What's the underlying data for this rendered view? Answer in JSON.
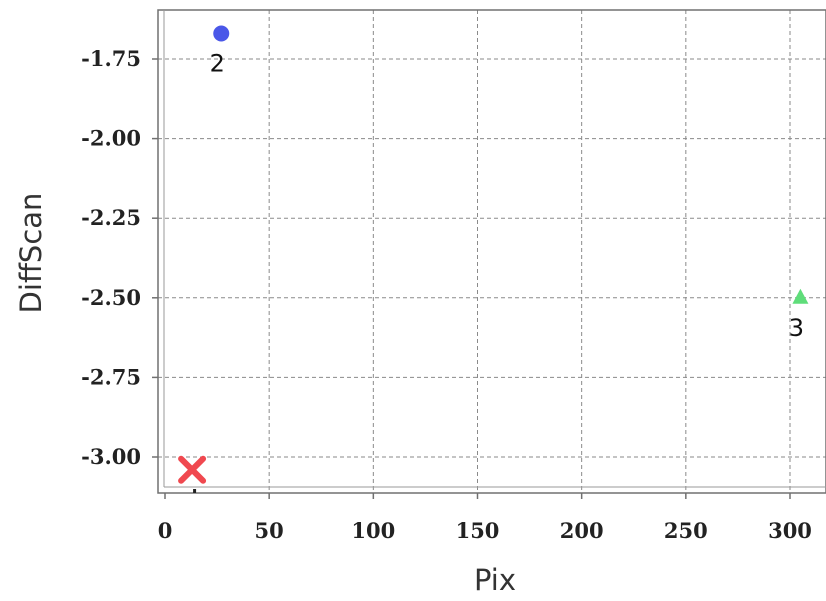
{
  "chart_data": {
    "type": "scatter",
    "xlabel": "Pix",
    "ylabel": "DiffScan",
    "xlim": [
      0,
      320
    ],
    "ylim": [
      -3.11,
      -1.62
    ],
    "x_ticks": [
      0,
      50,
      100,
      150,
      200,
      250,
      300
    ],
    "x_tick_labels": [
      "0",
      "50",
      "100",
      "150",
      "200",
      "250",
      "300"
    ],
    "y_ticks": [
      -1.75,
      -2.0,
      -2.25,
      -2.5,
      -2.75,
      -3.0
    ],
    "y_tick_labels": [
      "-1.75",
      "-2.00",
      "-2.25",
      "-2.50",
      "-2.75",
      "-3.00"
    ],
    "grid": true,
    "points": [
      {
        "label": "",
        "x": 13,
        "y": -3.04,
        "marker": "cross",
        "color": "#f0484f"
      },
      {
        "label": "2",
        "x": 27,
        "y": -1.67,
        "marker": "circle",
        "color": "#4a57e8"
      },
      {
        "label": "3",
        "x": 305,
        "y": -2.5,
        "marker": "triangle",
        "color": "#5fdd7a"
      }
    ]
  }
}
